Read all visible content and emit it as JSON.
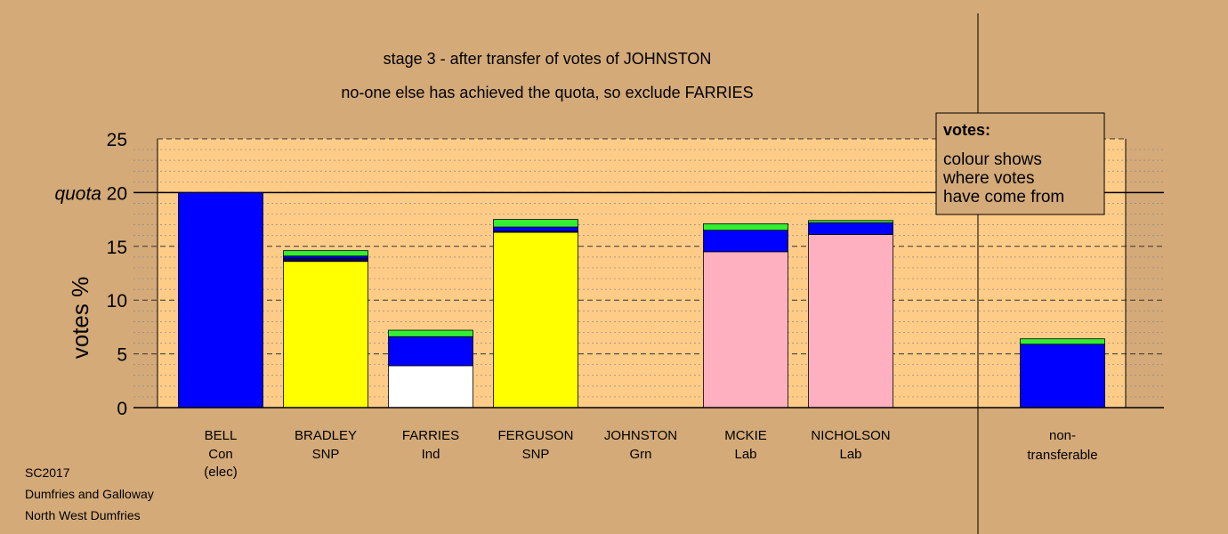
{
  "chart_data": {
    "type": "bar",
    "title": "stage 3 - after transfer of votes of JOHNSTON",
    "subtitle": "no-one else has achieved the quota, so exclude FARRIES",
    "ylabel": "votes %",
    "ylim": [
      0,
      25
    ],
    "yticks": [
      0,
      5,
      10,
      15,
      20,
      25
    ],
    "quota": 20,
    "quota_label": "quota",
    "colors": {
      "background": "#d4aa78",
      "plot_area": "#ffcc88",
      "Con": "#0000ff",
      "SNP": "#ffff00",
      "Ind": "#ffffff",
      "Lab": "#ffb0c0",
      "transfer_green": "#33ee33",
      "transfer_navy": "#000066"
    },
    "candidates": [
      {
        "name": "BELL",
        "party": "Con",
        "note": "(elec)",
        "segments": [
          {
            "value": 20.0,
            "color": "#0000ff"
          }
        ]
      },
      {
        "name": "BRADLEY",
        "party": "SNP",
        "segments": [
          {
            "value": 13.6,
            "color": "#ffff00"
          },
          {
            "value": 0.3,
            "color": "#000066"
          },
          {
            "value": 0.2,
            "color": "#0000ff"
          },
          {
            "value": 0.5,
            "color": "#33ee33"
          }
        ]
      },
      {
        "name": "FARRIES",
        "party": "Ind",
        "segments": [
          {
            "value": 3.9,
            "color": "#ffffff"
          },
          {
            "value": 2.7,
            "color": "#0000ff"
          },
          {
            "value": 0.6,
            "color": "#33ee33"
          }
        ]
      },
      {
        "name": "FERGUSON",
        "party": "SNP",
        "segments": [
          {
            "value": 16.3,
            "color": "#ffff00"
          },
          {
            "value": 0.1,
            "color": "#000066"
          },
          {
            "value": 0.4,
            "color": "#0000ff"
          },
          {
            "value": 0.7,
            "color": "#33ee33"
          }
        ]
      },
      {
        "name": "JOHNSTON",
        "party": "Grn",
        "segments": []
      },
      {
        "name": "MCKIE",
        "party": "Lab",
        "segments": [
          {
            "value": 14.5,
            "color": "#ffb0c0"
          },
          {
            "value": 2.0,
            "color": "#0000ff"
          },
          {
            "value": 0.6,
            "color": "#33ee33"
          }
        ]
      },
      {
        "name": "NICHOLSON",
        "party": "Lab",
        "segments": [
          {
            "value": 16.1,
            "color": "#ffb0c0"
          },
          {
            "value": 1.1,
            "color": "#0000ff"
          },
          {
            "value": 0.2,
            "color": "#33ee33"
          }
        ]
      }
    ],
    "nontransferable": {
      "label1": "non-",
      "label2": "transferable",
      "segments": [
        {
          "value": 5.9,
          "color": "#0000ff"
        },
        {
          "value": 0.5,
          "color": "#33ee33"
        }
      ]
    },
    "legend": {
      "title": "votes:",
      "lines": [
        "colour shows",
        "where votes",
        "have come from"
      ]
    }
  },
  "footer": [
    "SC2017",
    "Dumfries and Galloway",
    "North West Dumfries"
  ]
}
